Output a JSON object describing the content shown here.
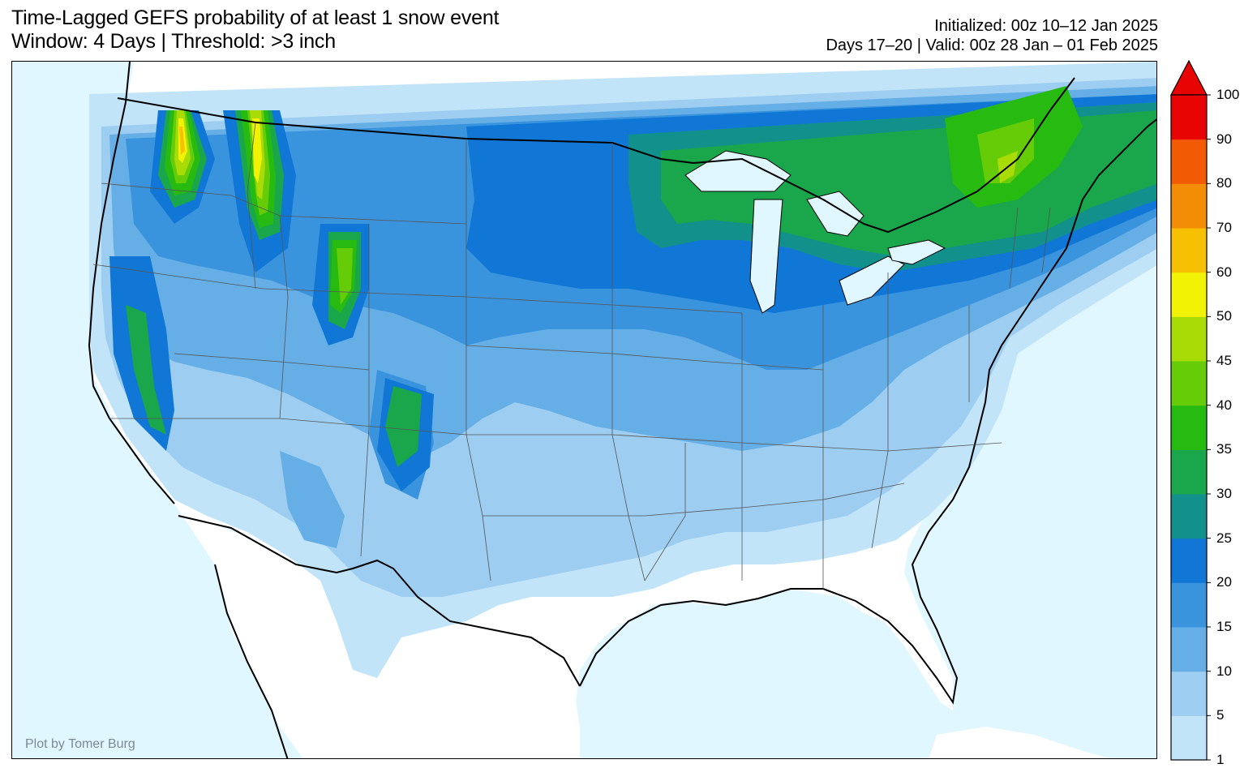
{
  "header": {
    "title_line1": "Time-Lagged GEFS probability of at least 1 snow event",
    "title_line2": "Window: 4 Days | Threshold: >3 inch",
    "init_line": "Initialized: 00z 10–12 Jan 2025",
    "valid_line": "Days 17–20 | Valid: 00z 28 Jan – 01 Feb 2025"
  },
  "map": {
    "credit": "Plot by Tomer Burg",
    "ocean_color": "#e1f7ff",
    "land_color": "#ffffff"
  },
  "colorbar": {
    "unit": "%",
    "ticks": [
      "1",
      "5",
      "10",
      "15",
      "20",
      "25",
      "30",
      "35",
      "40",
      "45",
      "50",
      "60",
      "70",
      "80",
      "90",
      "100"
    ],
    "colors": [
      "#c2e4f9",
      "#9dcdf1",
      "#66afe6",
      "#3a94dd",
      "#1177d6",
      "#12908c",
      "#1aa64a",
      "#27bb12",
      "#66cc07",
      "#a9dc06",
      "#f2f205",
      "#f7c003",
      "#f48d06",
      "#f35a04",
      "#e90404"
    ],
    "extend": "max"
  }
}
